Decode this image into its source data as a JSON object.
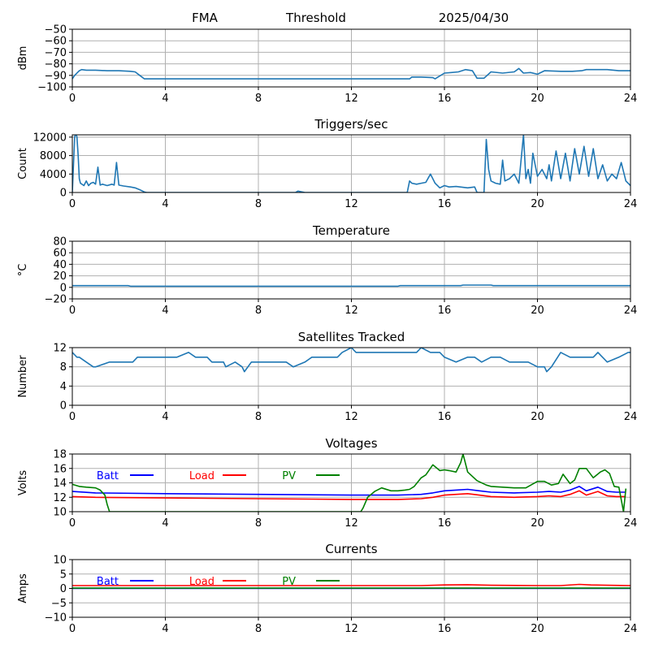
{
  "header": {
    "left": "FMA",
    "middle": "Threshold",
    "right": "2025/04/30"
  },
  "colors": {
    "series_default": "#1f77b4",
    "batt": "#0000ff",
    "load": "#ff0000",
    "pv": "#008000",
    "grid": "#b0b0b0"
  },
  "x_axis": {
    "ticks": [
      0,
      4,
      8,
      12,
      16,
      20,
      24
    ],
    "range": [
      0,
      24
    ]
  },
  "chart_data": [
    {
      "type": "line",
      "title": "",
      "ylabel": "dBm",
      "ylim": [
        -100,
        -50
      ],
      "yticks": [
        -100,
        -90,
        -80,
        -70,
        -60,
        -50
      ],
      "grid": true,
      "series": [
        {
          "color": "#1f77b4",
          "x": [
            0,
            0.1,
            0.3,
            0.4,
            0.6,
            1,
            1.5,
            2,
            2.5,
            2.7,
            2.9,
            3.1,
            4,
            8,
            12,
            14.5,
            14.6,
            15,
            15.5,
            15.6,
            16,
            16.3,
            16.6,
            16.9,
            17.2,
            17.4,
            17.7,
            18,
            18.5,
            19,
            19.2,
            19.4,
            19.7,
            20,
            20.3,
            21,
            21.5,
            21.9,
            22.1,
            22.5,
            23,
            23.5,
            24
          ],
          "y": [
            -93,
            -90,
            -86,
            -85,
            -85.5,
            -85.5,
            -86,
            -86,
            -86.5,
            -87,
            -90,
            -93,
            -93,
            -93,
            -93,
            -93,
            -91.5,
            -91.5,
            -92,
            -93,
            -88,
            -87.5,
            -87,
            -85,
            -86,
            -92.5,
            -92.5,
            -87,
            -88,
            -87,
            -84,
            -88,
            -87.5,
            -89,
            -86,
            -86.5,
            -86.5,
            -86,
            -85,
            -85,
            -85,
            -86,
            -86
          ]
        }
      ]
    },
    {
      "type": "line",
      "title": "Triggers/sec",
      "ylabel": "Count",
      "ylim": [
        0,
        12500
      ],
      "yticks": [
        0,
        4000,
        8000,
        12000
      ],
      "grid": true,
      "series": [
        {
          "color": "#1f77b4",
          "x": [
            0,
            0.1,
            0.15,
            0.2,
            0.25,
            0.3,
            0.35,
            0.5,
            0.6,
            0.7,
            0.8,
            0.9,
            1,
            1.1,
            1.2,
            1.3,
            1.5,
            1.7,
            1.8,
            1.9,
            2,
            2.2,
            2.5,
            2.7,
            2.9,
            3.1,
            3.2,
            4,
            8,
            9.6,
            9.7,
            10,
            12,
            14.4,
            14.5,
            14.6,
            14.8,
            15,
            15.2,
            15.4,
            15.6,
            15.8,
            16,
            16.2,
            16.5,
            17,
            17.3,
            17.4,
            17.6,
            17.7,
            17.8,
            17.9,
            18,
            18.2,
            18.4,
            18.5,
            18.6,
            18.8,
            19,
            19.2,
            19.4,
            19.5,
            19.6,
            19.7,
            19.8,
            20,
            20.2,
            20.4,
            20.5,
            20.6,
            20.8,
            21,
            21.2,
            21.4,
            21.6,
            21.8,
            22,
            22.2,
            22.4,
            22.6,
            22.8,
            23,
            23.2,
            23.4,
            23.6,
            23.8,
            24
          ],
          "y": [
            0,
            12000,
            13000,
            12000,
            8000,
            3000,
            2000,
            1500,
            2500,
            1500,
            2000,
            2200,
            1800,
            5500,
            1600,
            1800,
            1500,
            1800,
            1600,
            6500,
            1600,
            1400,
            1200,
            1000,
            600,
            100,
            0,
            0,
            0,
            0,
            300,
            0,
            0,
            0,
            2500,
            2000,
            1800,
            2000,
            2200,
            4000,
            2000,
            1000,
            1500,
            1200,
            1300,
            1000,
            1200,
            0,
            0,
            0,
            11500,
            5000,
            2500,
            2000,
            1800,
            7000,
            2500,
            3000,
            4000,
            2000,
            12500,
            3000,
            5000,
            2000,
            8500,
            3500,
            5000,
            3000,
            6000,
            2500,
            9000,
            3000,
            8500,
            2500,
            9500,
            4000,
            10000,
            3500,
            9500,
            3000,
            6000,
            2500,
            4000,
            3000,
            6500,
            2500,
            1500
          ]
        }
      ]
    },
    {
      "type": "line",
      "title": "Temperature",
      "ylabel": "°C",
      "ylim": [
        -20,
        80
      ],
      "yticks": [
        -20,
        0,
        20,
        40,
        60,
        80
      ],
      "grid": true,
      "series": [
        {
          "color": "#1f77b4",
          "x": [
            0,
            2.4,
            2.5,
            14,
            14.1,
            16.7,
            16.8,
            18,
            18.1,
            20.5,
            24
          ],
          "y": [
            3,
            3,
            2,
            2,
            3,
            3,
            4,
            4,
            3,
            3,
            3
          ]
        }
      ]
    },
    {
      "type": "line",
      "title": "Satellites Tracked",
      "ylabel": "Number",
      "ylim": [
        0,
        12
      ],
      "yticks": [
        0,
        4,
        8,
        12
      ],
      "grid": true,
      "series": [
        {
          "color": "#1f77b4",
          "x": [
            0,
            0.2,
            0.3,
            0.6,
            0.9,
            1,
            1.6,
            1.7,
            2,
            2.4,
            2.6,
            2.8,
            3,
            3.3,
            3.6,
            4,
            4.5,
            5,
            5.3,
            5.8,
            6,
            6.5,
            6.6,
            7,
            7.3,
            7.4,
            7.7,
            8,
            8.4,
            9,
            9.2,
            9.5,
            10,
            10.3,
            10.6,
            11,
            11.4,
            11.6,
            12,
            12.2,
            12.6,
            13,
            13.4,
            13.8,
            14,
            14.4,
            14.8,
            15,
            15.4,
            15.8,
            16,
            16.5,
            17,
            17.3,
            17.6,
            18,
            18.4,
            18.8,
            19.3,
            19.6,
            20,
            20.3,
            20.4,
            20.6,
            21,
            21.4,
            21.9,
            22.4,
            22.6,
            23,
            23.5,
            23.9,
            24
          ],
          "y": [
            11,
            10,
            10,
            9,
            8,
            8,
            9,
            9,
            9,
            9,
            9,
            10,
            10,
            10,
            10,
            10,
            10,
            11,
            10,
            10,
            9,
            9,
            8,
            9,
            8,
            7,
            9,
            9,
            9,
            9,
            9,
            8,
            9,
            10,
            10,
            10,
            10,
            11,
            12,
            11,
            11,
            11,
            11,
            11,
            11,
            11,
            11,
            12,
            11,
            11,
            10,
            9,
            10,
            10,
            9,
            10,
            10,
            9,
            9,
            9,
            8,
            8,
            7,
            8,
            11,
            10,
            10,
            10,
            11,
            9,
            10,
            11,
            11
          ]
        }
      ]
    },
    {
      "type": "line",
      "title": "Voltages",
      "ylabel": "Volts",
      "ylim": [
        10,
        18
      ],
      "yticks": [
        10,
        12,
        14,
        16,
        18
      ],
      "grid": true,
      "legend": [
        "Batt",
        "Load",
        "PV"
      ],
      "series": [
        {
          "name": "Batt",
          "color": "#0000ff",
          "x": [
            0,
            1,
            4,
            8,
            12,
            14,
            15,
            15.5,
            16,
            16.5,
            17,
            17.5,
            18,
            19,
            20,
            20.5,
            21,
            21.4,
            21.8,
            22.1,
            22.6,
            23,
            23.4,
            23.8
          ],
          "y": [
            12.8,
            12.6,
            12.5,
            12.4,
            12.3,
            12.3,
            12.4,
            12.6,
            12.9,
            13,
            13.1,
            12.9,
            12.7,
            12.6,
            12.7,
            12.8,
            12.7,
            13,
            13.5,
            12.9,
            13.4,
            12.8,
            12.7,
            12.7
          ]
        },
        {
          "name": "Load",
          "color": "#ff0000",
          "x": [
            0,
            1,
            4,
            8,
            12,
            14,
            15,
            15.5,
            16,
            16.5,
            17,
            17.5,
            18,
            19,
            20,
            20.5,
            21,
            21.4,
            21.8,
            22.1,
            22.6,
            23,
            23.4,
            23.8
          ],
          "y": [
            12.1,
            12,
            11.9,
            11.8,
            11.7,
            11.7,
            11.8,
            12,
            12.3,
            12.4,
            12.5,
            12.3,
            12.1,
            12,
            12.1,
            12.2,
            12.1,
            12.4,
            12.9,
            12.3,
            12.8,
            12.2,
            12.1,
            12.1
          ]
        },
        {
          "name": "PV",
          "color": "#008000",
          "x": [
            0,
            0.3,
            0.6,
            1,
            1.2,
            1.4,
            1.5,
            1.6,
            12.4,
            12.5,
            12.7,
            13,
            13.3,
            13.7,
            14,
            14.3,
            14.5,
            14.7,
            15,
            15.2,
            15.5,
            15.8,
            16,
            16.2,
            16.5,
            16.7,
            16.8,
            17,
            17.4,
            17.8,
            18,
            18.5,
            19,
            19.5,
            20,
            20.3,
            20.6,
            20.9,
            21.1,
            21.4,
            21.6,
            21.8,
            22.1,
            22.4,
            22.7,
            22.9,
            23.1,
            23.3,
            23.5,
            23.7,
            23.8
          ],
          "y": [
            13.8,
            13.5,
            13.4,
            13.3,
            13,
            12.3,
            11,
            10,
            10,
            10.5,
            12,
            12.8,
            13.3,
            12.9,
            12.9,
            13,
            13.1,
            13.5,
            14.7,
            15.1,
            16.5,
            15.7,
            15.8,
            15.7,
            15.5,
            16.8,
            18,
            15.5,
            14.3,
            13.7,
            13.5,
            13.4,
            13.3,
            13.3,
            14.2,
            14.2,
            13.7,
            13.9,
            15.2,
            13.9,
            14.4,
            16,
            16,
            14.7,
            15.5,
            15.8,
            15.3,
            13.5,
            13.4,
            10,
            13.2
          ]
        }
      ]
    },
    {
      "type": "line",
      "title": "Currents",
      "ylabel": "Amps",
      "ylim": [
        -10,
        10
      ],
      "yticks": [
        -10,
        -5,
        0,
        5,
        10
      ],
      "grid": true,
      "legend": [
        "Batt",
        "Load",
        "PV"
      ],
      "series": [
        {
          "name": "Batt",
          "color": "#0000ff",
          "x": [
            0,
            24
          ],
          "y": [
            0,
            0
          ]
        },
        {
          "name": "Load",
          "color": "#ff0000",
          "x": [
            0,
            4,
            8,
            12,
            15,
            16,
            17,
            18,
            20,
            21,
            21.8,
            22.3,
            23,
            24
          ],
          "y": [
            1,
            1,
            1,
            1,
            1,
            1.2,
            1.3,
            1.1,
            1,
            1,
            1.4,
            1.2,
            1.1,
            1
          ]
        },
        {
          "name": "PV",
          "color": "#008000",
          "x": [
            0,
            24
          ],
          "y": [
            0.1,
            0.1
          ]
        }
      ]
    }
  ]
}
